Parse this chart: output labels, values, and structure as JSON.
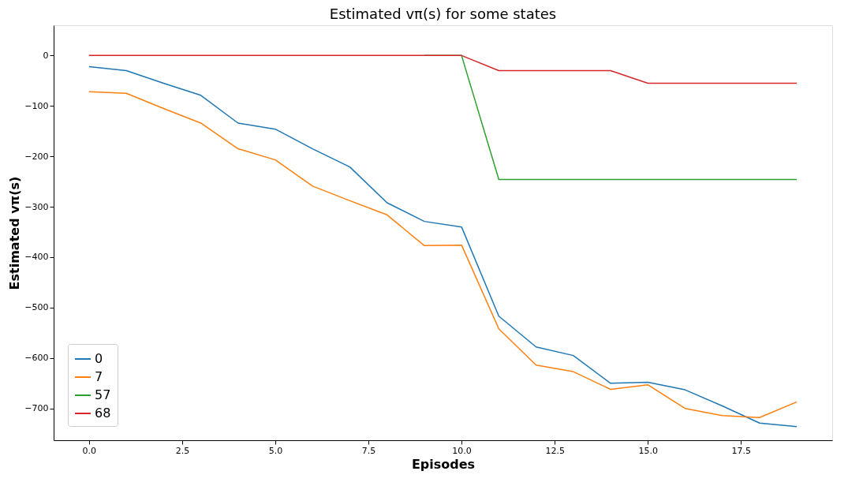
{
  "chart_data": {
    "type": "line",
    "title": "Estimated vπ(s) for some states",
    "xlabel": "Episodes",
    "ylabel": "Estimated vπ(s)",
    "x": [
      0,
      1,
      2,
      3,
      4,
      5,
      6,
      7,
      8,
      9,
      10,
      11,
      12,
      13,
      14,
      15,
      16,
      17,
      18,
      19
    ],
    "series": [
      {
        "name": "0",
        "color": "#1f77b4",
        "values": [
          -22,
          -30,
          -55,
          -79,
          -134,
          -146,
          -185,
          -221,
          -292,
          -329,
          -340,
          -517,
          -578,
          -595,
          -650,
          -648,
          -663,
          -695,
          -729,
          -736
        ]
      },
      {
        "name": "7",
        "color": "#ff7f0e",
        "values": [
          -72,
          -75,
          -105,
          -134,
          -185,
          -207,
          -259,
          -288,
          -316,
          -377,
          -376,
          -542,
          -614,
          -627,
          -662,
          -653,
          -700,
          -714,
          -718,
          -687
        ]
      },
      {
        "name": "57",
        "color": "#2ca02c",
        "values": [
          null,
          null,
          null,
          null,
          null,
          null,
          null,
          null,
          null,
          0,
          0,
          -246,
          -246,
          -246,
          -246,
          -246,
          -246,
          -246,
          -246,
          -246
        ]
      },
      {
        "name": "68",
        "color": "#d62728",
        "values": [
          0,
          0,
          0,
          0,
          0,
          0,
          0,
          0,
          0,
          0,
          0,
          -30,
          -30,
          -30,
          -30,
          -55,
          -55,
          -55,
          -55,
          -55
        ]
      }
    ],
    "xlim": [
      -0.95,
      19.95
    ],
    "ylim": [
      -763,
      60
    ],
    "xticks": [
      {
        "value": 0,
        "label": "0.0"
      },
      {
        "value": 2.5,
        "label": "2.5"
      },
      {
        "value": 5,
        "label": "5.0"
      },
      {
        "value": 7.5,
        "label": "7.5"
      },
      {
        "value": 10,
        "label": "10.0"
      },
      {
        "value": 12.5,
        "label": "12.5"
      },
      {
        "value": 15,
        "label": "15.0"
      },
      {
        "value": 17.5,
        "label": "17.5"
      }
    ],
    "yticks": [
      -700,
      -600,
      -500,
      -400,
      -300,
      -200,
      -100,
      0
    ],
    "legend": "bottom left",
    "grid": false,
    "marker": "none",
    "line_style": "solid"
  }
}
